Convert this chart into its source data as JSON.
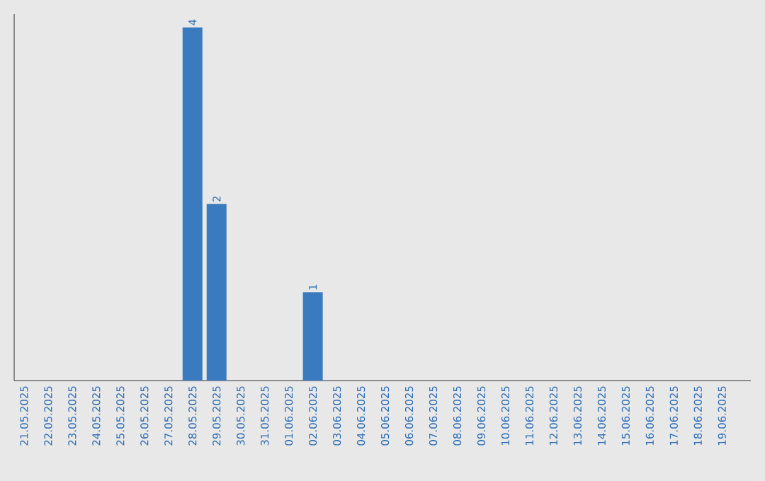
{
  "chart_data": {
    "type": "bar",
    "categories": [
      "21.05.2025",
      "22.05.2025",
      "23.05.2025",
      "24.05.2025",
      "25.05.2025",
      "26.05.2025",
      "27.05.2025",
      "28.05.2025",
      "29.05.2025",
      "30.05.2025",
      "31.05.2025",
      "01.06.2025",
      "02.06.2025",
      "03.06.2025",
      "04.06.2025",
      "05.06.2025",
      "06.06.2025",
      "07.06.2025",
      "08.06.2025",
      "09.06.2025",
      "10.06.2025",
      "11.06.2025",
      "12.06.2025",
      "13.06.2025",
      "14.06.2025",
      "15.06.2025",
      "16.06.2025",
      "17.06.2025",
      "18.06.2025",
      "19.06.2025"
    ],
    "values": [
      0,
      0,
      0,
      0,
      0,
      0,
      0,
      4,
      2,
      0,
      0,
      0,
      1,
      0,
      0,
      0,
      0,
      0,
      0,
      0,
      0,
      0,
      0,
      0,
      0,
      0,
      0,
      0,
      0,
      0
    ],
    "value_labels": [
      null,
      null,
      null,
      null,
      null,
      null,
      null,
      "4",
      "2",
      null,
      null,
      null,
      "1",
      null,
      null,
      null,
      null,
      null,
      null,
      null,
      null,
      null,
      null,
      null,
      null,
      null,
      null,
      null,
      null,
      null
    ],
    "color": "#3a7bbf",
    "ylim": [
      0,
      4.15
    ],
    "tick_labels": "x",
    "grid": false
  }
}
